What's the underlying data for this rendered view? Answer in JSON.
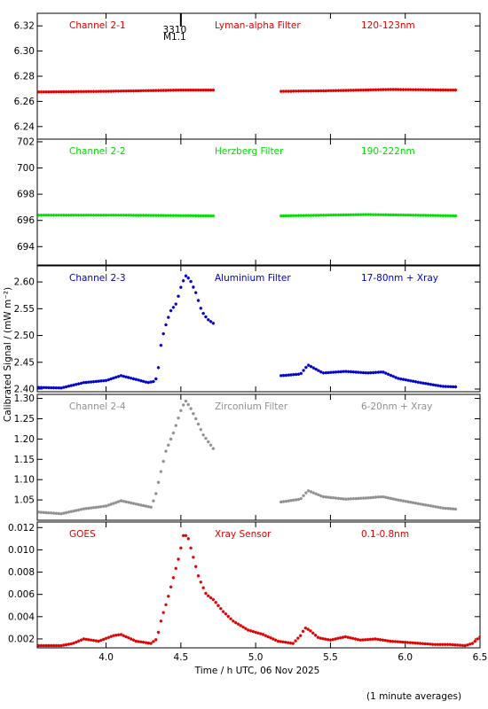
{
  "chart_data": {
    "type": "scatter",
    "xlabel": "Time / h UTC, 06 Nov 2025",
    "ylabel": "Calibrated Signal / (mW m⁻²)",
    "footnote": "(1 minute averages)",
    "xlim": [
      3.54,
      6.5
    ],
    "xticks": [
      "4.0",
      "4.5",
      "5.0",
      "5.5",
      "6.0",
      "6.5"
    ],
    "xtick_values": [
      4.0,
      4.5,
      5.0,
      5.5,
      6.0,
      6.5
    ],
    "grid": false,
    "marker_annotation": {
      "x": 4.5,
      "lines": [
        "3310",
        "M1.1"
      ]
    },
    "panels": [
      {
        "name": "Channel 2-1",
        "filter": "Lyman-alpha Filter",
        "band": "120-123nm",
        "color": "#e00000",
        "ylim": [
          6.23,
          6.33
        ],
        "yticks": [
          "6.24",
          "6.26",
          "6.28",
          "6.30",
          "6.32"
        ],
        "ytick_values": [
          6.24,
          6.26,
          6.28,
          6.3,
          6.32
        ],
        "segments": [
          {
            "x": [
              3.55,
              4.0,
              4.5,
              4.72
            ],
            "y": [
              6.2675,
              6.268,
              6.269,
              6.269
            ]
          },
          {
            "x": [
              5.17,
              5.5,
              5.9,
              6.35
            ],
            "y": [
              6.268,
              6.2685,
              6.2695,
              6.269
            ]
          }
        ]
      },
      {
        "name": "Channel 2-2",
        "filter": "Herzberg Filter",
        "band": "190-222nm",
        "color": "#00dd00",
        "ylim": [
          692.6,
          702.2
        ],
        "yticks": [
          "694",
          "696",
          "698",
          "700",
          "702"
        ],
        "ytick_values": [
          694,
          696,
          698,
          700,
          702
        ],
        "segments": [
          {
            "x": [
              3.55,
              4.1,
              4.72
            ],
            "y": [
              696.4,
              696.4,
              696.35
            ]
          },
          {
            "x": [
              5.17,
              5.75,
              6.35
            ],
            "y": [
              696.35,
              696.45,
              696.35
            ]
          }
        ]
      },
      {
        "name": "Channel 2-3",
        "filter": "Aluminium Filter",
        "band": "17-80nm + Xray",
        "color": "#0000cc",
        "ylim": [
          2.395,
          2.63
        ],
        "yticks": [
          "2.40",
          "2.45",
          "2.50",
          "2.55",
          "2.60"
        ],
        "ytick_values": [
          2.4,
          2.45,
          2.5,
          2.55,
          2.6
        ],
        "segments": [
          {
            "x": [
              3.55,
              3.7,
              3.85,
              4.0,
              4.1,
              4.2,
              4.28,
              4.33,
              4.35,
              4.37,
              4.4,
              4.43,
              4.47,
              4.5,
              4.53,
              4.56,
              4.6,
              4.64,
              4.68,
              4.72
            ],
            "y": [
              2.403,
              2.402,
              2.412,
              2.416,
              2.425,
              2.418,
              2.412,
              2.415,
              2.44,
              2.49,
              2.52,
              2.545,
              2.56,
              2.59,
              2.612,
              2.605,
              2.58,
              2.545,
              2.53,
              2.522
            ]
          },
          {
            "x": [
              5.17,
              5.3,
              5.35,
              5.45,
              5.6,
              5.75,
              5.85,
              5.95,
              6.1,
              6.25,
              6.35
            ],
            "y": [
              2.425,
              2.428,
              2.445,
              2.43,
              2.433,
              2.43,
              2.432,
              2.42,
              2.412,
              2.405,
              2.404
            ]
          }
        ]
      },
      {
        "name": "Channel 2-4",
        "filter": "Zirconium Filter",
        "band": "6-20nm + Xray",
        "color": "#909090",
        "ylim": [
          1.0,
          1.31
        ],
        "yticks": [
          "1.05",
          "1.10",
          "1.15",
          "1.20",
          "1.25",
          "1.30"
        ],
        "ytick_values": [
          1.05,
          1.1,
          1.15,
          1.2,
          1.25,
          1.3
        ],
        "segments": [
          {
            "x": [
              3.55,
              3.7,
              3.85,
              4.0,
              4.1,
              4.2,
              4.3,
              4.33,
              4.36,
              4.4,
              4.45,
              4.5,
              4.53,
              4.56,
              4.6,
              4.65,
              4.72
            ],
            "y": [
              1.02,
              1.016,
              1.028,
              1.035,
              1.048,
              1.04,
              1.032,
              1.06,
              1.11,
              1.17,
              1.215,
              1.27,
              1.295,
              1.28,
              1.25,
              1.21,
              1.175
            ]
          },
          {
            "x": [
              5.17,
              5.3,
              5.35,
              5.45,
              5.6,
              5.75,
              5.85,
              5.95,
              6.1,
              6.25,
              6.35
            ],
            "y": [
              1.045,
              1.052,
              1.073,
              1.058,
              1.052,
              1.055,
              1.058,
              1.05,
              1.04,
              1.03,
              1.027
            ]
          }
        ]
      },
      {
        "name": "GOES",
        "filter": "Xray Sensor",
        "band": "0.1-0.8nm",
        "color": "#e00000",
        "ylim": [
          0.0012,
          0.0125
        ],
        "yticks": [
          "0.002",
          "0.004",
          "0.006",
          "0.008",
          "0.010",
          "0.012"
        ],
        "ytick_values": [
          0.002,
          0.004,
          0.006,
          0.008,
          0.01,
          0.012
        ],
        "segments": [
          {
            "x": [
              3.55,
              3.7,
              3.78,
              3.85,
              3.95,
              4.05,
              4.1,
              4.2,
              4.3,
              4.34,
              4.37,
              4.41,
              4.45,
              4.49,
              4.52,
              4.55,
              4.58,
              4.62,
              4.67,
              4.72,
              4.78,
              4.85,
              4.95,
              5.05,
              5.15,
              5.25,
              5.3,
              5.33,
              5.36,
              5.42,
              5.5,
              5.6,
              5.7,
              5.8,
              5.9,
              6.0,
              6.1,
              6.2,
              6.3,
              6.4,
              6.45,
              6.5
            ],
            "y": [
              0.0014,
              0.0014,
              0.0016,
              0.002,
              0.0018,
              0.0023,
              0.0024,
              0.0018,
              0.0016,
              0.002,
              0.0038,
              0.0055,
              0.0075,
              0.0095,
              0.0115,
              0.011,
              0.0095,
              0.0075,
              0.006,
              0.0055,
              0.0045,
              0.0036,
              0.0028,
              0.0024,
              0.0018,
              0.0016,
              0.0023,
              0.003,
              0.0028,
              0.0021,
              0.0019,
              0.0022,
              0.0019,
              0.002,
              0.0018,
              0.0017,
              0.0016,
              0.0015,
              0.0015,
              0.0014,
              0.0016,
              0.0022
            ]
          }
        ]
      }
    ]
  }
}
